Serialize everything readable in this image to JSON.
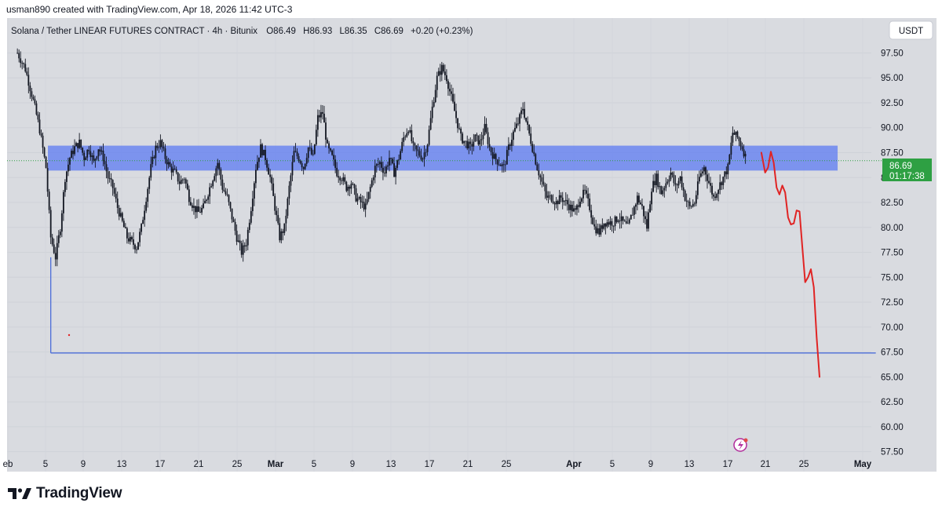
{
  "header": {
    "attribution": "usman890 created with TradingView.com, Apr 18, 2026 11:42 UTC-3"
  },
  "legend": {
    "symbol": "Solana / Tether LINEAR FUTURES CONTRACT · 4h · Bitunix",
    "open_label": "O",
    "open": "86.49",
    "high_label": "H",
    "high": "86.93",
    "low_label": "L",
    "low": "86.35",
    "close_label": "C",
    "close": "86.69",
    "change": "+0.20 (+0.23%)"
  },
  "currency_button": "USDT",
  "price_tag": {
    "price": "86.69",
    "countdown": "01:17:38"
  },
  "footer": {
    "brand": "TradingView"
  },
  "colors": {
    "background": "#d9dbe0",
    "candle": "#131722",
    "zone": "#6b86f0",
    "support_line": "#4a6cd8",
    "projection": "#e02424",
    "price_tag": "#2ea043"
  },
  "chart_data": {
    "type": "candlestick",
    "timeframe": "4h",
    "ylim": [
      55.5,
      101
    ],
    "y_ticks": [
      "57.50",
      "60.00",
      "62.50",
      "65.00",
      "67.50",
      "70.00",
      "72.50",
      "75.00",
      "77.50",
      "80.00",
      "82.50",
      "85.00",
      "87.50",
      "90.00",
      "92.50",
      "95.00",
      "97.50"
    ],
    "x_ticks": [
      "eb",
      "5",
      "9",
      "13",
      "17",
      "21",
      "25",
      "Mar",
      "5",
      "9",
      "13",
      "17",
      "21",
      "25",
      "Apr",
      "5",
      "9",
      "13",
      "17",
      "21",
      "25",
      "May"
    ],
    "close_path": [
      [
        1,
        97.5
      ],
      [
        1.8,
        96
      ],
      [
        2.6,
        93
      ],
      [
        3.3,
        90
      ],
      [
        4,
        86
      ],
      [
        4.5,
        79
      ],
      [
        5,
        77
      ],
      [
        5.5,
        80
      ],
      [
        6,
        85
      ],
      [
        6.5,
        87
      ],
      [
        7,
        88
      ],
      [
        7.5,
        88.5
      ],
      [
        8,
        87
      ],
      [
        8.5,
        88
      ],
      [
        9,
        86.5
      ],
      [
        9.5,
        88
      ],
      [
        10,
        87
      ],
      [
        10.5,
        85
      ],
      [
        11,
        84
      ],
      [
        11.5,
        82
      ],
      [
        12,
        80.5
      ],
      [
        12.5,
        79
      ],
      [
        13,
        78.5
      ],
      [
        13.5,
        78
      ],
      [
        14,
        80
      ],
      [
        14.5,
        83
      ],
      [
        15,
        86
      ],
      [
        15.5,
        88
      ],
      [
        16,
        88.5
      ],
      [
        16.5,
        87
      ],
      [
        17,
        86
      ],
      [
        17.5,
        85.5
      ],
      [
        18,
        84.5
      ],
      [
        18.5,
        85
      ],
      [
        19,
        83
      ],
      [
        19.5,
        82
      ],
      [
        20,
        81.5
      ],
      [
        20.5,
        82
      ],
      [
        21,
        83.5
      ],
      [
        21.5,
        85
      ],
      [
        22,
        86.5
      ],
      [
        22.5,
        84
      ],
      [
        23,
        83
      ],
      [
        23.5,
        81
      ],
      [
        24,
        79
      ],
      [
        24.5,
        77.5
      ],
      [
        25,
        78.5
      ],
      [
        25.5,
        82
      ],
      [
        26,
        86
      ],
      [
        26.5,
        88
      ],
      [
        27,
        87
      ],
      [
        27.5,
        85
      ],
      [
        28,
        82
      ],
      [
        28.5,
        79
      ],
      [
        29,
        80
      ],
      [
        29.5,
        84
      ],
      [
        30,
        87.5
      ],
      [
        30.5,
        87
      ],
      [
        31,
        86
      ],
      [
        31.5,
        88
      ],
      [
        32,
        87
      ],
      [
        32.5,
        91
      ],
      [
        33,
        91.5
      ],
      [
        33.5,
        88
      ],
      [
        34,
        87
      ],
      [
        34.5,
        85.5
      ],
      [
        35,
        85
      ],
      [
        35.5,
        84
      ],
      [
        36,
        84.5
      ],
      [
        36.5,
        83
      ],
      [
        37,
        82.5
      ],
      [
        37.5,
        82
      ],
      [
        38,
        84
      ],
      [
        38.5,
        86
      ],
      [
        39,
        86.5
      ],
      [
        39.5,
        85.5
      ],
      [
        40,
        87
      ],
      [
        40.5,
        85.5
      ],
      [
        41,
        87
      ],
      [
        41.5,
        89
      ],
      [
        42,
        90
      ],
      [
        42.5,
        88
      ],
      [
        43,
        87.5
      ],
      [
        43.5,
        87
      ],
      [
        44,
        88.5
      ],
      [
        44.5,
        92
      ],
      [
        45,
        95
      ],
      [
        45.5,
        96
      ],
      [
        46,
        95
      ],
      [
        46.5,
        93
      ],
      [
        47,
        91
      ],
      [
        47.5,
        89
      ],
      [
        48,
        88.5
      ],
      [
        48.5,
        88
      ],
      [
        49,
        89
      ],
      [
        49.5,
        88.5
      ],
      [
        50,
        90
      ],
      [
        50.5,
        88
      ],
      [
        51,
        87
      ],
      [
        51.5,
        86.5
      ],
      [
        52,
        86
      ],
      [
        52.5,
        88
      ],
      [
        53,
        89.5
      ],
      [
        53.5,
        90.5
      ],
      [
        54,
        92
      ],
      [
        54.5,
        90
      ],
      [
        55,
        88
      ],
      [
        55.5,
        86
      ],
      [
        56,
        84.5
      ],
      [
        56.5,
        83
      ],
      [
        57,
        83
      ],
      [
        57.5,
        82.5
      ],
      [
        58,
        83
      ],
      [
        58.5,
        82.5
      ],
      [
        59,
        82
      ],
      [
        59.5,
        81.5
      ],
      [
        60,
        83
      ],
      [
        60.5,
        83.5
      ],
      [
        61,
        82
      ],
      [
        61.5,
        80
      ],
      [
        62,
        79.5
      ],
      [
        62.5,
        80.5
      ],
      [
        63,
        80.5
      ],
      [
        63.5,
        80.5
      ],
      [
        64,
        81
      ],
      [
        64.5,
        80.5
      ],
      [
        65,
        80
      ],
      [
        65.5,
        81.5
      ],
      [
        66,
        83
      ],
      [
        66.5,
        82
      ],
      [
        67,
        80
      ],
      [
        67.5,
        84
      ],
      [
        68,
        85
      ],
      [
        68.5,
        83.5
      ],
      [
        69,
        84.5
      ],
      [
        69.5,
        85.5
      ],
      [
        70,
        84
      ],
      [
        70.5,
        85
      ],
      [
        71,
        83
      ],
      [
        71.5,
        82
      ],
      [
        72,
        82.5
      ],
      [
        72.5,
        85
      ],
      [
        73,
        86
      ],
      [
        73.5,
        84.5
      ],
      [
        74,
        83
      ],
      [
        74.5,
        84
      ],
      [
        75,
        85
      ],
      [
        75.5,
        86
      ],
      [
        76,
        89.5
      ],
      [
        76.5,
        89
      ],
      [
        77,
        88
      ],
      [
        77.5,
        86.69
      ]
    ],
    "resistance_zone": {
      "from": 85.7,
      "to": 88.2,
      "x_start": 4.2,
      "x_end": 87
    },
    "support_level": {
      "value": 67.4,
      "x_start": 4.5,
      "x_end": 91
    },
    "projection_path": [
      [
        79,
        87.5
      ],
      [
        79.4,
        85.5
      ],
      [
        79.7,
        86
      ],
      [
        80,
        87.6
      ],
      [
        80.3,
        86.5
      ],
      [
        80.6,
        84
      ],
      [
        80.9,
        83.3
      ],
      [
        81.2,
        84.2
      ],
      [
        81.5,
        83.5
      ],
      [
        81.8,
        81
      ],
      [
        82.1,
        80.3
      ],
      [
        82.4,
        80.4
      ],
      [
        82.7,
        81.7
      ],
      [
        83,
        81.6
      ],
      [
        83.3,
        78
      ],
      [
        83.6,
        74.5
      ],
      [
        83.9,
        75
      ],
      [
        84.2,
        75.8
      ],
      [
        84.5,
        74
      ],
      [
        84.8,
        69
      ],
      [
        85.1,
        65
      ]
    ],
    "last_price": 86.69
  }
}
